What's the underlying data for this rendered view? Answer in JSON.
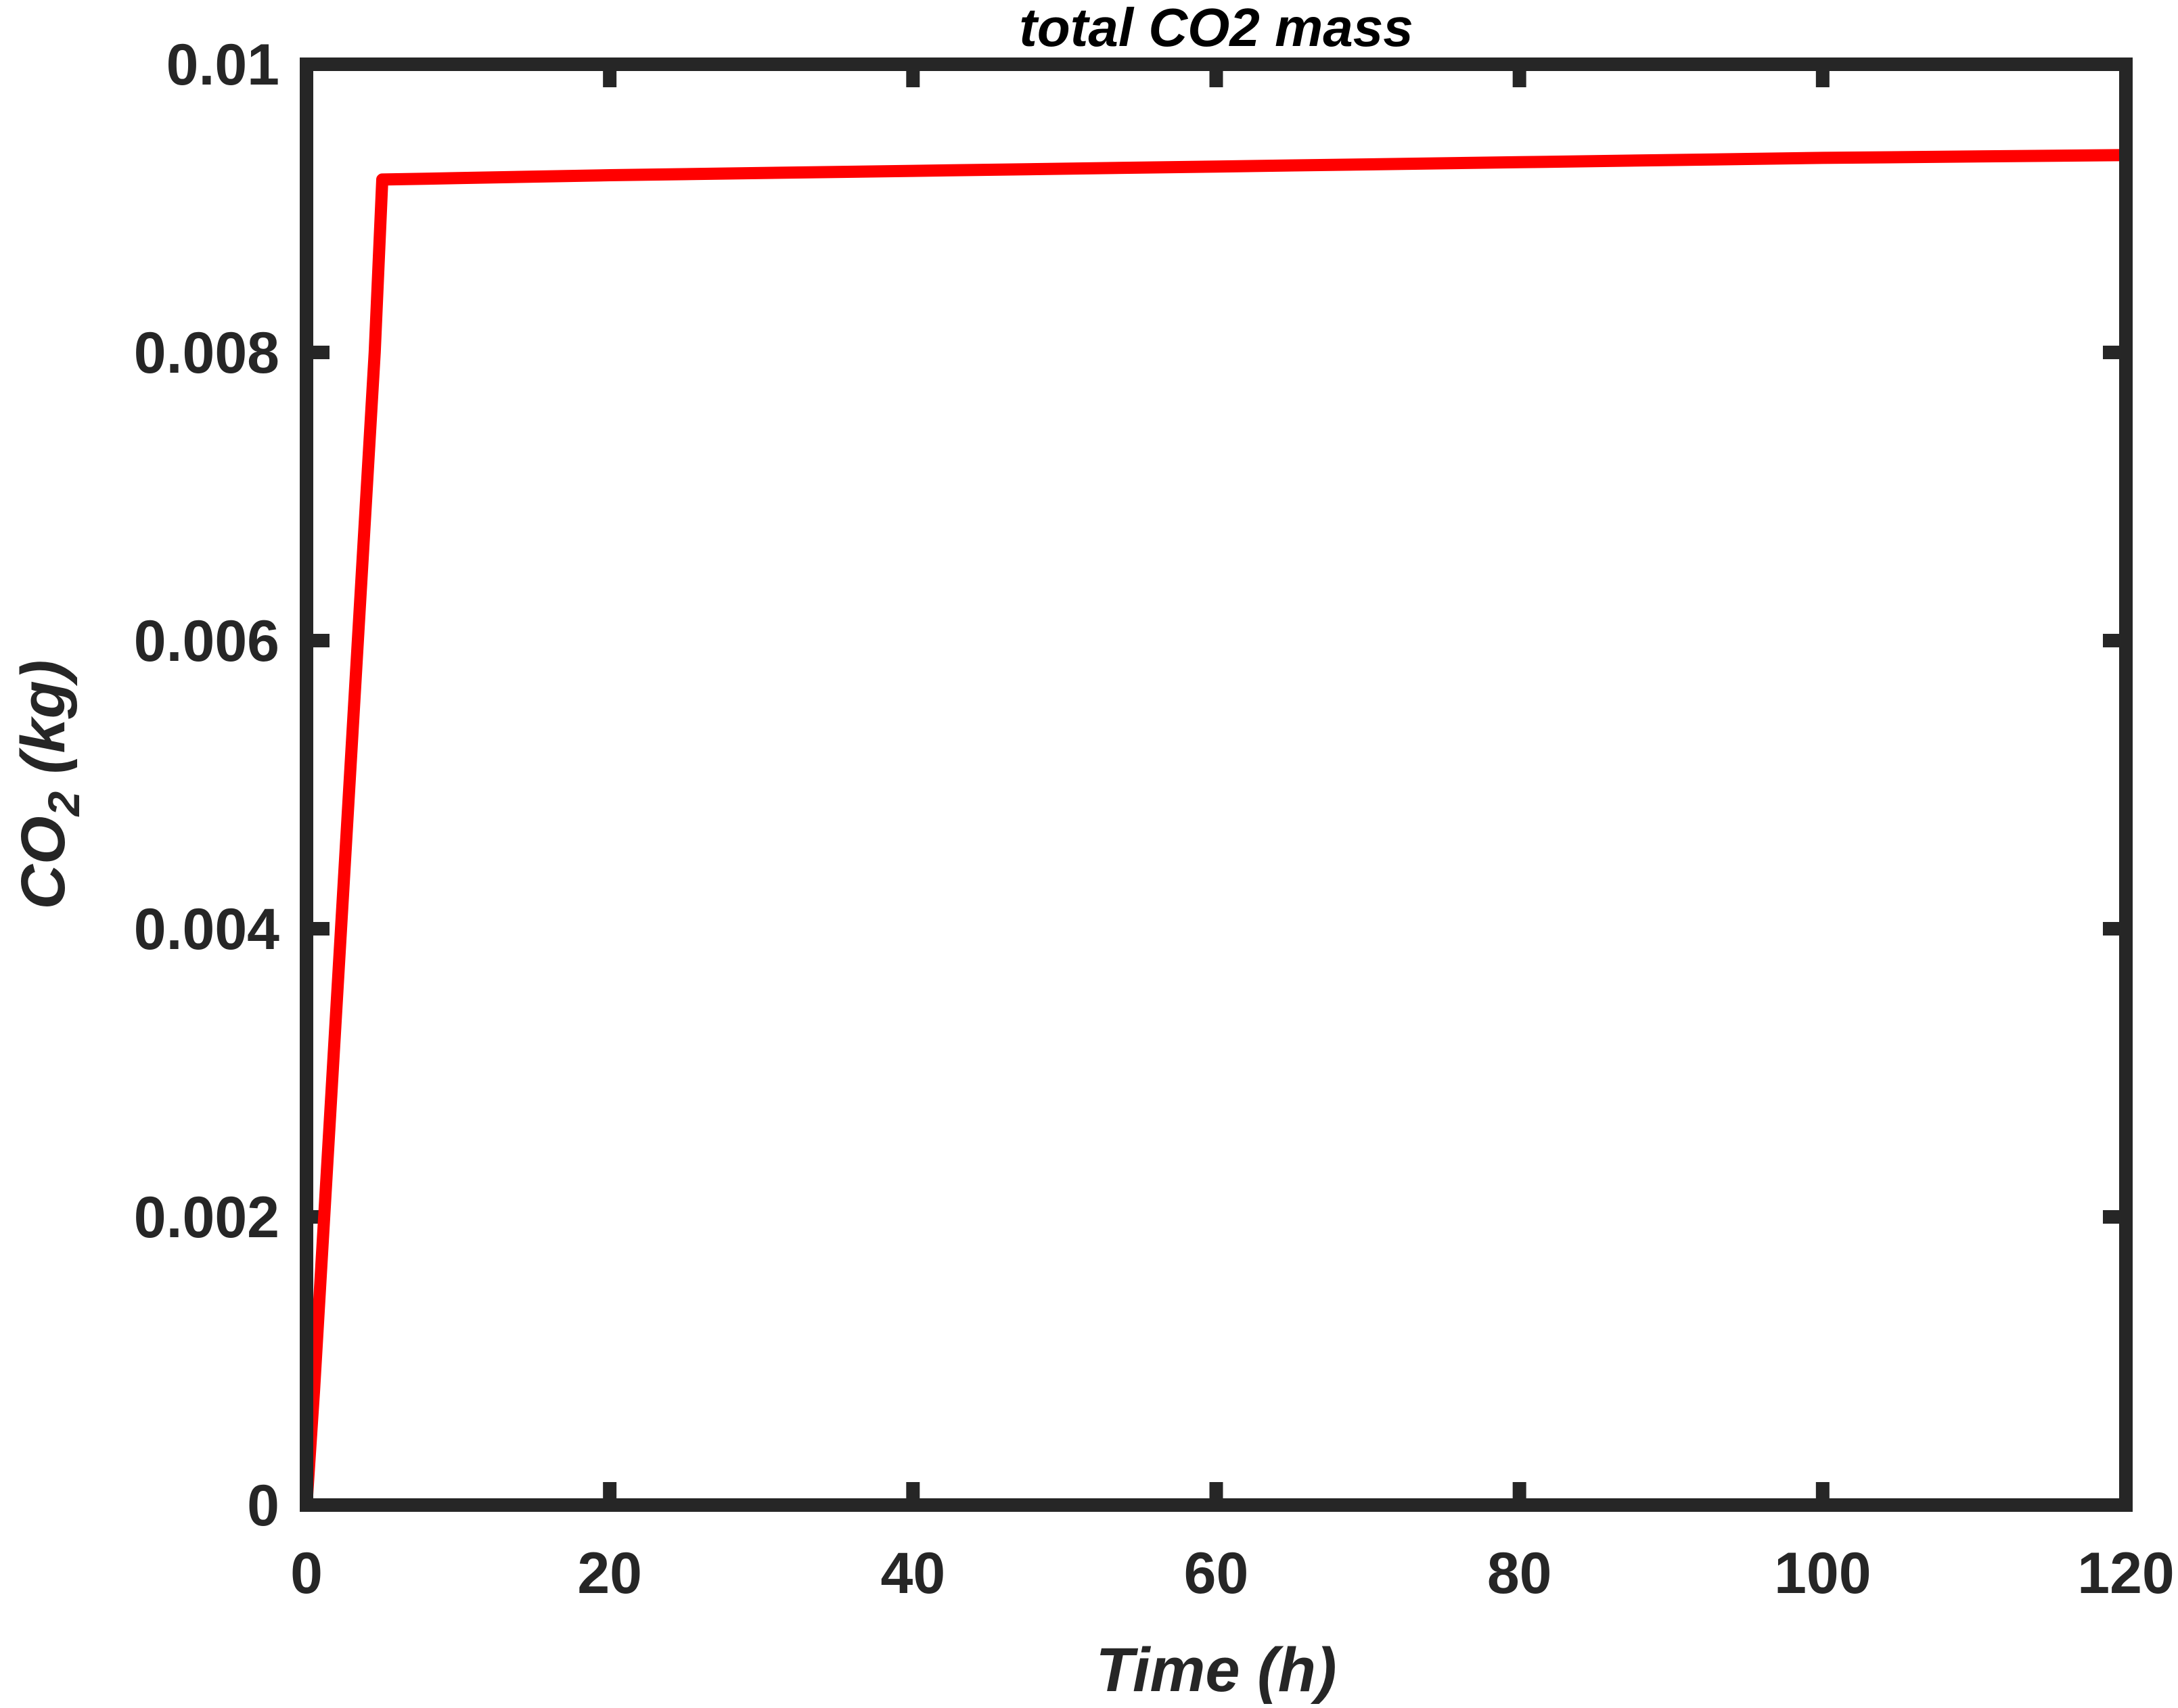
{
  "chart_data": {
    "type": "line",
    "title": "total CO2 mass",
    "xlabel": "Time (h)",
    "ylabel": {
      "main": "CO",
      "subscript": "2",
      "unit": " (kg)"
    },
    "xlim": [
      0,
      120
    ],
    "ylim": [
      0,
      0.01
    ],
    "xticks": [
      0,
      20,
      40,
      60,
      80,
      100,
      120
    ],
    "xtick_labels": [
      "0",
      "20",
      "40",
      "60",
      "80",
      "100",
      "120"
    ],
    "yticks": [
      0,
      0.002,
      0.004,
      0.006,
      0.008,
      0.01
    ],
    "ytick_labels": [
      "0",
      "0.002",
      "0.004",
      "0.006",
      "0.008",
      "0.01"
    ],
    "grid": false,
    "box": true,
    "series": [
      {
        "color": "#ff0000",
        "x": [
          0,
          0.5,
          1,
          1.5,
          2,
          2.5,
          3,
          3.5,
          4,
          4.5,
          5,
          10,
          20,
          40,
          60,
          80,
          100,
          120
        ],
        "y": [
          0,
          0.0008,
          0.0017,
          0.0026,
          0.0035,
          0.0044,
          0.0053,
          0.0062,
          0.0071,
          0.008,
          0.0092,
          0.00921,
          0.00923,
          0.00926,
          0.00929,
          0.00932,
          0.00935,
          0.00937
        ]
      }
    ]
  },
  "colors": {
    "axis": "#262626",
    "line": "#ff0000",
    "background": "#ffffff"
  }
}
